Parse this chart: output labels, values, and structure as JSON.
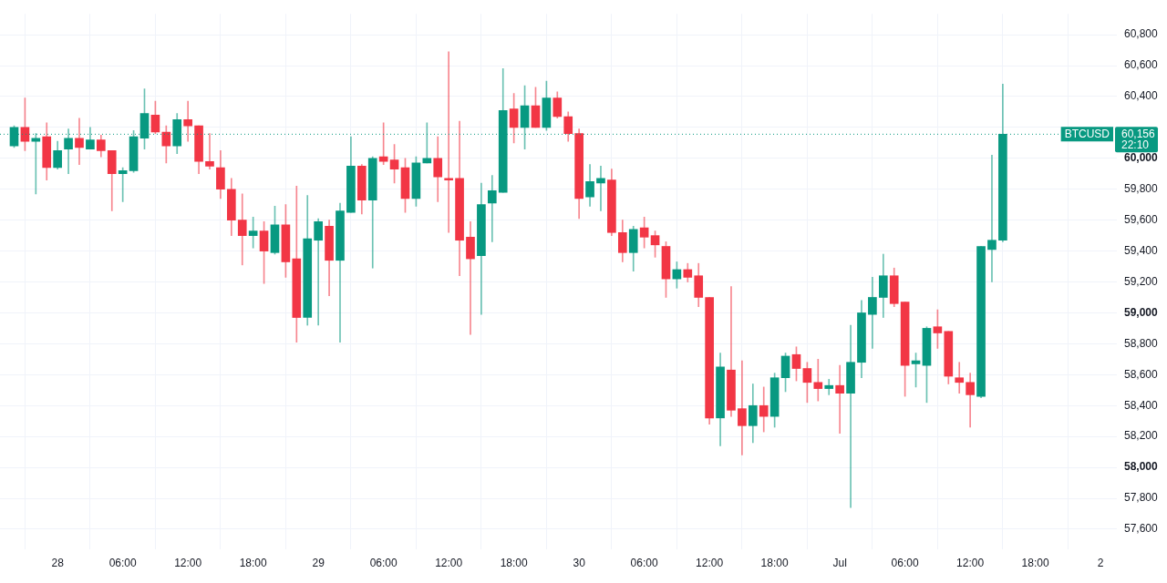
{
  "chart_data": {
    "type": "candlestick",
    "x": [
      "--06-27T20:00",
      "--06-27T21:00",
      "--06-27T22:00",
      "--06-27T23:00",
      "--06-28T00:00",
      "--06-28T01:00",
      "--06-28T02:00",
      "--06-28T03:00",
      "--06-28T04:00",
      "--06-28T05:00",
      "--06-28T06:00",
      "--06-28T07:00",
      "--06-28T08:00",
      "--06-28T09:00",
      "--06-28T10:00",
      "--06-28T11:00",
      "--06-28T12:00",
      "--06-28T13:00",
      "--06-28T14:00",
      "--06-28T15:00",
      "--06-28T16:00",
      "--06-28T17:00",
      "--06-28T18:00",
      "--06-28T19:00",
      "--06-28T20:00",
      "--06-28T21:00",
      "--06-28T22:00",
      "--06-28T23:00",
      "--06-29T00:00",
      "--06-29T01:00",
      "--06-29T02:00",
      "--06-29T03:00",
      "--06-29T04:00",
      "--06-29T05:00",
      "--06-29T06:00",
      "--06-29T07:00",
      "--06-29T08:00",
      "--06-29T09:00",
      "--06-29T10:00",
      "--06-29T11:00",
      "--06-29T12:00",
      "--06-29T13:00",
      "--06-29T14:00",
      "--06-29T15:00",
      "--06-29T16:00",
      "--06-29T17:00",
      "--06-29T18:00",
      "--06-29T19:00",
      "--06-29T20:00",
      "--06-29T21:00",
      "--06-29T22:00",
      "--06-29T23:00",
      "--06-30T00:00",
      "--06-30T01:00",
      "--06-30T02:00",
      "--06-30T03:00",
      "--06-30T04:00",
      "--06-30T05:00",
      "--06-30T06:00",
      "--06-30T07:00",
      "--06-30T08:00",
      "--06-30T09:00",
      "--06-30T10:00",
      "--06-30T11:00",
      "--06-30T12:00",
      "--06-30T13:00",
      "--06-30T14:00",
      "--06-30T15:00",
      "--06-30T16:00",
      "--06-30T17:00",
      "--06-30T18:00",
      "--06-30T19:00",
      "--06-30T20:00",
      "--06-30T21:00",
      "--06-30T22:00",
      "--06-30T23:00",
      "--07-01T00:00",
      "--07-01T01:00",
      "--07-01T02:00",
      "--07-01T03:00",
      "--07-01T04:00",
      "--07-01T05:00",
      "--07-01T06:00",
      "--07-01T07:00",
      "--07-01T08:00",
      "--07-01T09:00",
      "--07-01T10:00",
      "--07-01T11:00",
      "--07-01T12:00",
      "--07-01T13:00",
      "--07-01T14:00",
      "--07-01T15:00"
    ],
    "ohlc": [
      [
        60080,
        60210,
        60070,
        60200
      ],
      [
        60200,
        60390,
        60050,
        60110
      ],
      [
        60110,
        60160,
        59770,
        60130
      ],
      [
        60140,
        60230,
        59860,
        59940
      ],
      [
        59940,
        60110,
        59930,
        60050
      ],
      [
        60060,
        60190,
        59900,
        60130
      ],
      [
        60130,
        60260,
        59960,
        60070
      ],
      [
        60060,
        60200,
        60060,
        60120
      ],
      [
        60120,
        60150,
        60010,
        60050
      ],
      [
        60050,
        60050,
        59660,
        59900
      ],
      [
        59900,
        59940,
        59720,
        59920
      ],
      [
        59920,
        60180,
        59910,
        60140
      ],
      [
        60130,
        60450,
        60060,
        60290
      ],
      [
        60280,
        60370,
        60160,
        60170
      ],
      [
        60170,
        60210,
        59970,
        60080
      ],
      [
        60080,
        60290,
        60030,
        60250
      ],
      [
        60250,
        60370,
        60110,
        60210
      ],
      [
        60210,
        60210,
        59900,
        59980
      ],
      [
        59980,
        60160,
        59930,
        59950
      ],
      [
        59940,
        60050,
        59740,
        59800
      ],
      [
        59800,
        59870,
        59500,
        59600
      ],
      [
        59600,
        59770,
        59310,
        59500
      ],
      [
        59500,
        59620,
        59420,
        59530
      ],
      [
        59530,
        59590,
        59190,
        59400
      ],
      [
        59390,
        59690,
        59380,
        59570
      ],
      [
        59570,
        59700,
        59230,
        59330
      ],
      [
        59350,
        59820,
        58810,
        58970
      ],
      [
        58970,
        59760,
        58920,
        59480
      ],
      [
        59470,
        59610,
        58920,
        59590
      ],
      [
        59560,
        59600,
        59110,
        59340
      ],
      [
        59340,
        59710,
        58810,
        59660
      ],
      [
        59650,
        60140,
        59650,
        59950
      ],
      [
        59950,
        59960,
        59640,
        59730
      ],
      [
        59730,
        60010,
        59290,
        60000
      ],
      [
        60010,
        60230,
        59960,
        59980
      ],
      [
        59990,
        60090,
        59840,
        59930
      ],
      [
        59940,
        60000,
        59650,
        59740
      ],
      [
        59740,
        60010,
        59690,
        59970
      ],
      [
        59970,
        60230,
        59970,
        60000
      ],
      [
        60000,
        60140,
        59720,
        59880
      ],
      [
        59870,
        60690,
        59520,
        59860
      ],
      [
        59870,
        60240,
        59240,
        59470
      ],
      [
        59490,
        59590,
        58860,
        59350
      ],
      [
        59370,
        59840,
        58990,
        59700
      ],
      [
        59710,
        59890,
        59460,
        59790
      ],
      [
        59780,
        60580,
        59780,
        60310
      ],
      [
        60320,
        60420,
        60100,
        60200
      ],
      [
        60200,
        60470,
        60060,
        60340
      ],
      [
        60340,
        60460,
        60200,
        60200
      ],
      [
        60200,
        60500,
        60180,
        60390
      ],
      [
        60390,
        60430,
        60260,
        60270
      ],
      [
        60270,
        60300,
        60110,
        60160
      ],
      [
        60160,
        60190,
        59610,
        59740
      ],
      [
        59750,
        59960,
        59690,
        59850
      ],
      [
        59840,
        59950,
        59660,
        59870
      ],
      [
        59860,
        59930,
        59500,
        59520
      ],
      [
        59520,
        59600,
        59330,
        59390
      ],
      [
        59390,
        59560,
        59270,
        59540
      ],
      [
        59550,
        59620,
        59420,
        59490
      ],
      [
        59500,
        59530,
        59360,
        59440
      ],
      [
        59430,
        59460,
        59100,
        59220
      ],
      [
        59220,
        59330,
        59160,
        59280
      ],
      [
        59280,
        59320,
        59200,
        59230
      ],
      [
        59240,
        59320,
        59040,
        59100
      ],
      [
        59100,
        59100,
        58280,
        58320
      ],
      [
        58320,
        58740,
        58140,
        58650
      ],
      [
        58630,
        59170,
        58330,
        58370
      ],
      [
        58380,
        58690,
        58080,
        58270
      ],
      [
        58270,
        58540,
        58160,
        58400
      ],
      [
        58400,
        58520,
        58230,
        58330
      ],
      [
        58330,
        58610,
        58260,
        58580
      ],
      [
        58580,
        58740,
        58490,
        58720
      ],
      [
        58730,
        58780,
        58560,
        58640
      ],
      [
        58640,
        58680,
        58420,
        58550
      ],
      [
        58550,
        58700,
        58430,
        58510
      ],
      [
        58510,
        58570,
        58470,
        58530
      ],
      [
        58530,
        58660,
        58220,
        58480
      ],
      [
        58480,
        58920,
        57740,
        58680
      ],
      [
        58680,
        59080,
        58580,
        59000
      ],
      [
        58990,
        59230,
        58770,
        59100
      ],
      [
        59100,
        59380,
        58970,
        59240
      ],
      [
        59240,
        59290,
        59040,
        59060
      ],
      [
        59070,
        59070,
        58460,
        58660
      ],
      [
        58670,
        58740,
        58520,
        58690
      ],
      [
        58660,
        58910,
        58420,
        58900
      ],
      [
        58910,
        59020,
        58770,
        58870
      ],
      [
        58880,
        58880,
        58540,
        58590
      ],
      [
        58580,
        58680,
        58480,
        58550
      ],
      [
        58550,
        58610,
        58260,
        58470
      ],
      [
        58460,
        59430,
        58450,
        59430
      ],
      [
        59410,
        60020,
        59200,
        59470
      ],
      [
        59470,
        60480,
        59460,
        60156
      ]
    ],
    "colors": [
      "#089981",
      "#f23645",
      "#089981",
      "#f23645",
      "#089981",
      "#089981",
      "#f23645",
      "#089981",
      "#f23645",
      "#f23645",
      "#089981",
      "#089981",
      "#089981",
      "#f23645",
      "#f23645",
      "#089981",
      "#f23645",
      "#f23645",
      "#f23645",
      "#f23645",
      "#f23645",
      "#f23645",
      "#089981",
      "#f23645",
      "#089981",
      "#f23645",
      "#f23645",
      "#089981",
      "#089981",
      "#f23645",
      "#089981",
      "#089981",
      "#f23645",
      "#089981",
      "#f23645",
      "#f23645",
      "#f23645",
      "#089981",
      "#089981",
      "#f23645",
      "#f23645",
      "#f23645",
      "#f23645",
      "#089981",
      "#089981",
      "#089981",
      "#f23645",
      "#089981",
      "#f23645",
      "#089981",
      "#f23645",
      "#f23645",
      "#f23645",
      "#089981",
      "#089981",
      "#f23645",
      "#f23645",
      "#089981",
      "#f23645",
      "#f23645",
      "#f23645",
      "#089981",
      "#f23645",
      "#f23645",
      "#f23645",
      "#089981",
      "#f23645",
      "#f23645",
      "#089981",
      "#f23645",
      "#089981",
      "#089981",
      "#f23645",
      "#f23645",
      "#f23645",
      "#089981",
      "#f23645",
      "#089981",
      "#089981",
      "#089981",
      "#089981",
      "#f23645",
      "#f23645",
      "#089981",
      "#089981",
      "#f23645",
      "#f23645",
      "#f23645",
      "#f23645",
      "#089981",
      "#089981",
      "#089981"
    ],
    "xlim": [
      "--06-27T18:42",
      "--07-02T01:30"
    ],
    "xticks": [
      {
        "value": "--06-28T00:00",
        "label": "28"
      },
      {
        "value": "--06-28T06:00",
        "label": "06:00"
      },
      {
        "value": "--06-28T12:00",
        "label": "12:00"
      },
      {
        "value": "--06-28T18:00",
        "label": "18:00"
      },
      {
        "value": "--06-29T00:00",
        "label": "29"
      },
      {
        "value": "--06-29T06:00",
        "label": "06:00"
      },
      {
        "value": "--06-29T12:00",
        "label": "12:00"
      },
      {
        "value": "--06-29T18:00",
        "label": "18:00"
      },
      {
        "value": "--06-30T00:00",
        "label": "30"
      },
      {
        "value": "--06-30T06:00",
        "label": "06:00"
      },
      {
        "value": "--06-30T12:00",
        "label": "12:00"
      },
      {
        "value": "--06-30T18:00",
        "label": "18:00"
      },
      {
        "value": "--07-01T00:00",
        "label": "Jul"
      },
      {
        "value": "--07-01T06:00",
        "label": "06:00"
      },
      {
        "value": "--07-01T12:00",
        "label": "12:00"
      },
      {
        "value": "--07-01T18:00",
        "label": "18:00"
      },
      {
        "value": "--07-02T00:00",
        "label": "2"
      }
    ],
    "ylim": [
      57470,
      60935
    ],
    "yticks": [
      {
        "value": 57600,
        "label": "57,600"
      },
      {
        "value": 57800,
        "label": "57,800"
      },
      {
        "value": 58000,
        "label": "58,000"
      },
      {
        "value": 58200,
        "label": "58,200"
      },
      {
        "value": 58400,
        "label": "58,400"
      },
      {
        "value": 58600,
        "label": "58,600"
      },
      {
        "value": 58800,
        "label": "58,800"
      },
      {
        "value": 59000,
        "label": "59,000"
      },
      {
        "value": 59200,
        "label": "59,200"
      },
      {
        "value": 59400,
        "label": "59,400"
      },
      {
        "value": 59600,
        "label": "59,600"
      },
      {
        "value": 59800,
        "label": "59,800"
      },
      {
        "value": 60000,
        "label": "60,000"
      },
      {
        "value": 60200,
        "label": null
      },
      {
        "value": 60400,
        "label": "60,400"
      },
      {
        "value": 60600,
        "label": "60,600"
      },
      {
        "value": 60800,
        "label": "60,800"
      }
    ],
    "grid": true,
    "ref_lines": [
      {
        "axis": "y",
        "value": 60156,
        "label": "BTCUSD",
        "color": "#089981",
        "line_style": "dotted"
      }
    ],
    "annotations": [
      "60,156",
      "22:10"
    ]
  }
}
